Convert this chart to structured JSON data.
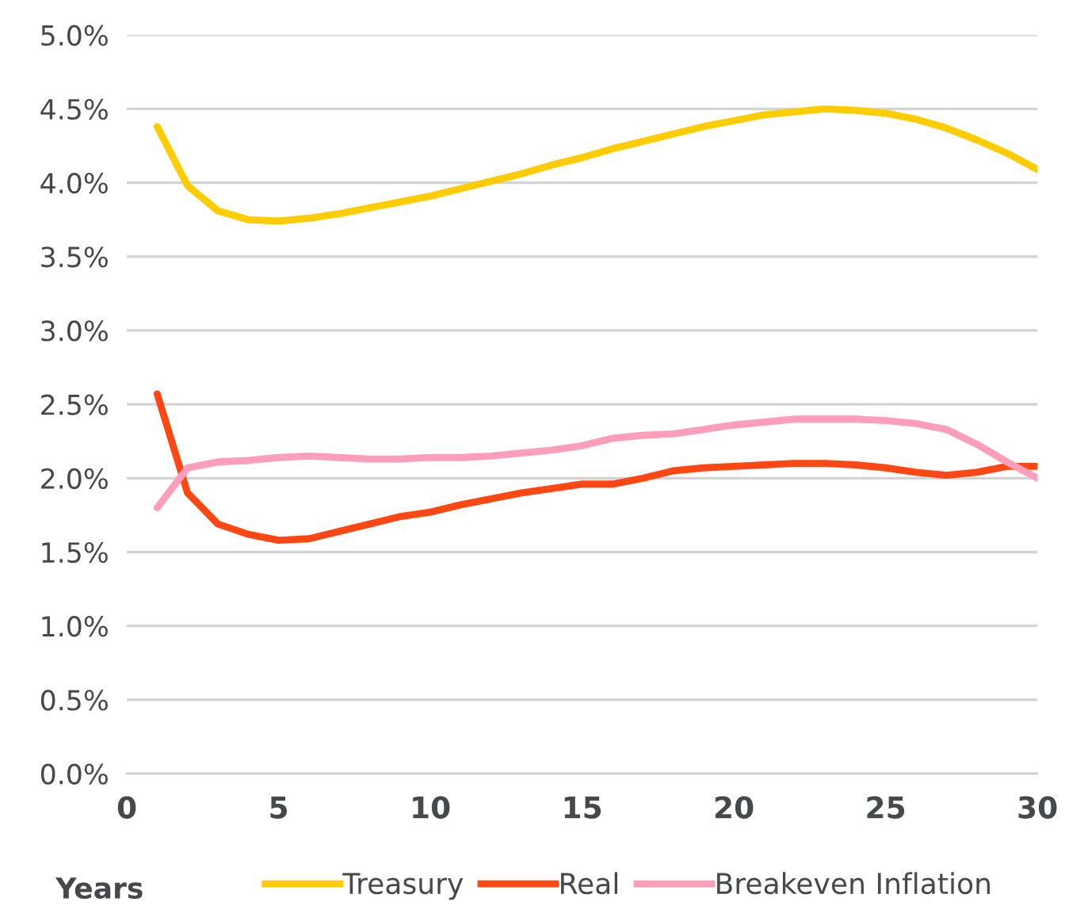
{
  "chart_data": {
    "type": "line",
    "xlabel": "Years",
    "x": [
      1,
      2,
      3,
      4,
      5,
      6,
      7,
      8,
      9,
      10,
      11,
      12,
      13,
      14,
      15,
      16,
      17,
      18,
      19,
      20,
      21,
      22,
      23,
      24,
      25,
      26,
      27,
      28,
      29,
      30
    ],
    "series": [
      {
        "name": "Treasury",
        "color": "#ffcc00",
        "values": [
          4.38,
          3.98,
          3.81,
          3.75,
          3.74,
          3.76,
          3.79,
          3.83,
          3.87,
          3.91,
          3.96,
          4.01,
          4.06,
          4.12,
          4.17,
          4.23,
          4.28,
          4.33,
          4.38,
          4.42,
          4.46,
          4.48,
          4.5,
          4.49,
          4.47,
          4.43,
          4.37,
          4.29,
          4.2,
          4.09
        ]
      },
      {
        "name": "Real",
        "color": "#ff4713",
        "values": [
          2.57,
          1.9,
          1.69,
          1.62,
          1.58,
          1.59,
          1.64,
          1.69,
          1.74,
          1.77,
          1.82,
          1.86,
          1.9,
          1.93,
          1.96,
          1.96,
          2.0,
          2.05,
          2.07,
          2.08,
          2.09,
          2.1,
          2.1,
          2.09,
          2.07,
          2.04,
          2.02,
          2.04,
          2.08,
          2.08
        ]
      },
      {
        "name": "Breakeven Inflation",
        "color": "#ff9ebb",
        "values": [
          1.8,
          2.07,
          2.11,
          2.12,
          2.14,
          2.15,
          2.14,
          2.13,
          2.13,
          2.14,
          2.14,
          2.15,
          2.17,
          2.19,
          2.22,
          2.27,
          2.29,
          2.3,
          2.33,
          2.36,
          2.38,
          2.4,
          2.4,
          2.4,
          2.39,
          2.37,
          2.33,
          2.23,
          2.11,
          2.0
        ]
      }
    ],
    "xlim": [
      0,
      30
    ],
    "xticks": [
      0,
      5,
      10,
      15,
      20,
      25,
      30
    ],
    "ylim": [
      0,
      5
    ],
    "yticks": [
      {
        "value": 0,
        "label": "0.0%"
      },
      {
        "value": 0.5,
        "label": "0.5%"
      },
      {
        "value": 1,
        "label": "1.0%"
      },
      {
        "value": 1.5,
        "label": "1.5%"
      },
      {
        "value": 2,
        "label": "2.0%"
      },
      {
        "value": 2.5,
        "label": "2.5%"
      },
      {
        "value": 3,
        "label": "3.0%"
      },
      {
        "value": 3.5,
        "label": "3.5%"
      },
      {
        "value": 4,
        "label": "4.0%"
      },
      {
        "value": 4.5,
        "label": "4.5%"
      },
      {
        "value": 5,
        "label": "5.0%"
      }
    ],
    "grid": "y",
    "legend": "bottom",
    "marker": "none",
    "line_style": "solid"
  }
}
